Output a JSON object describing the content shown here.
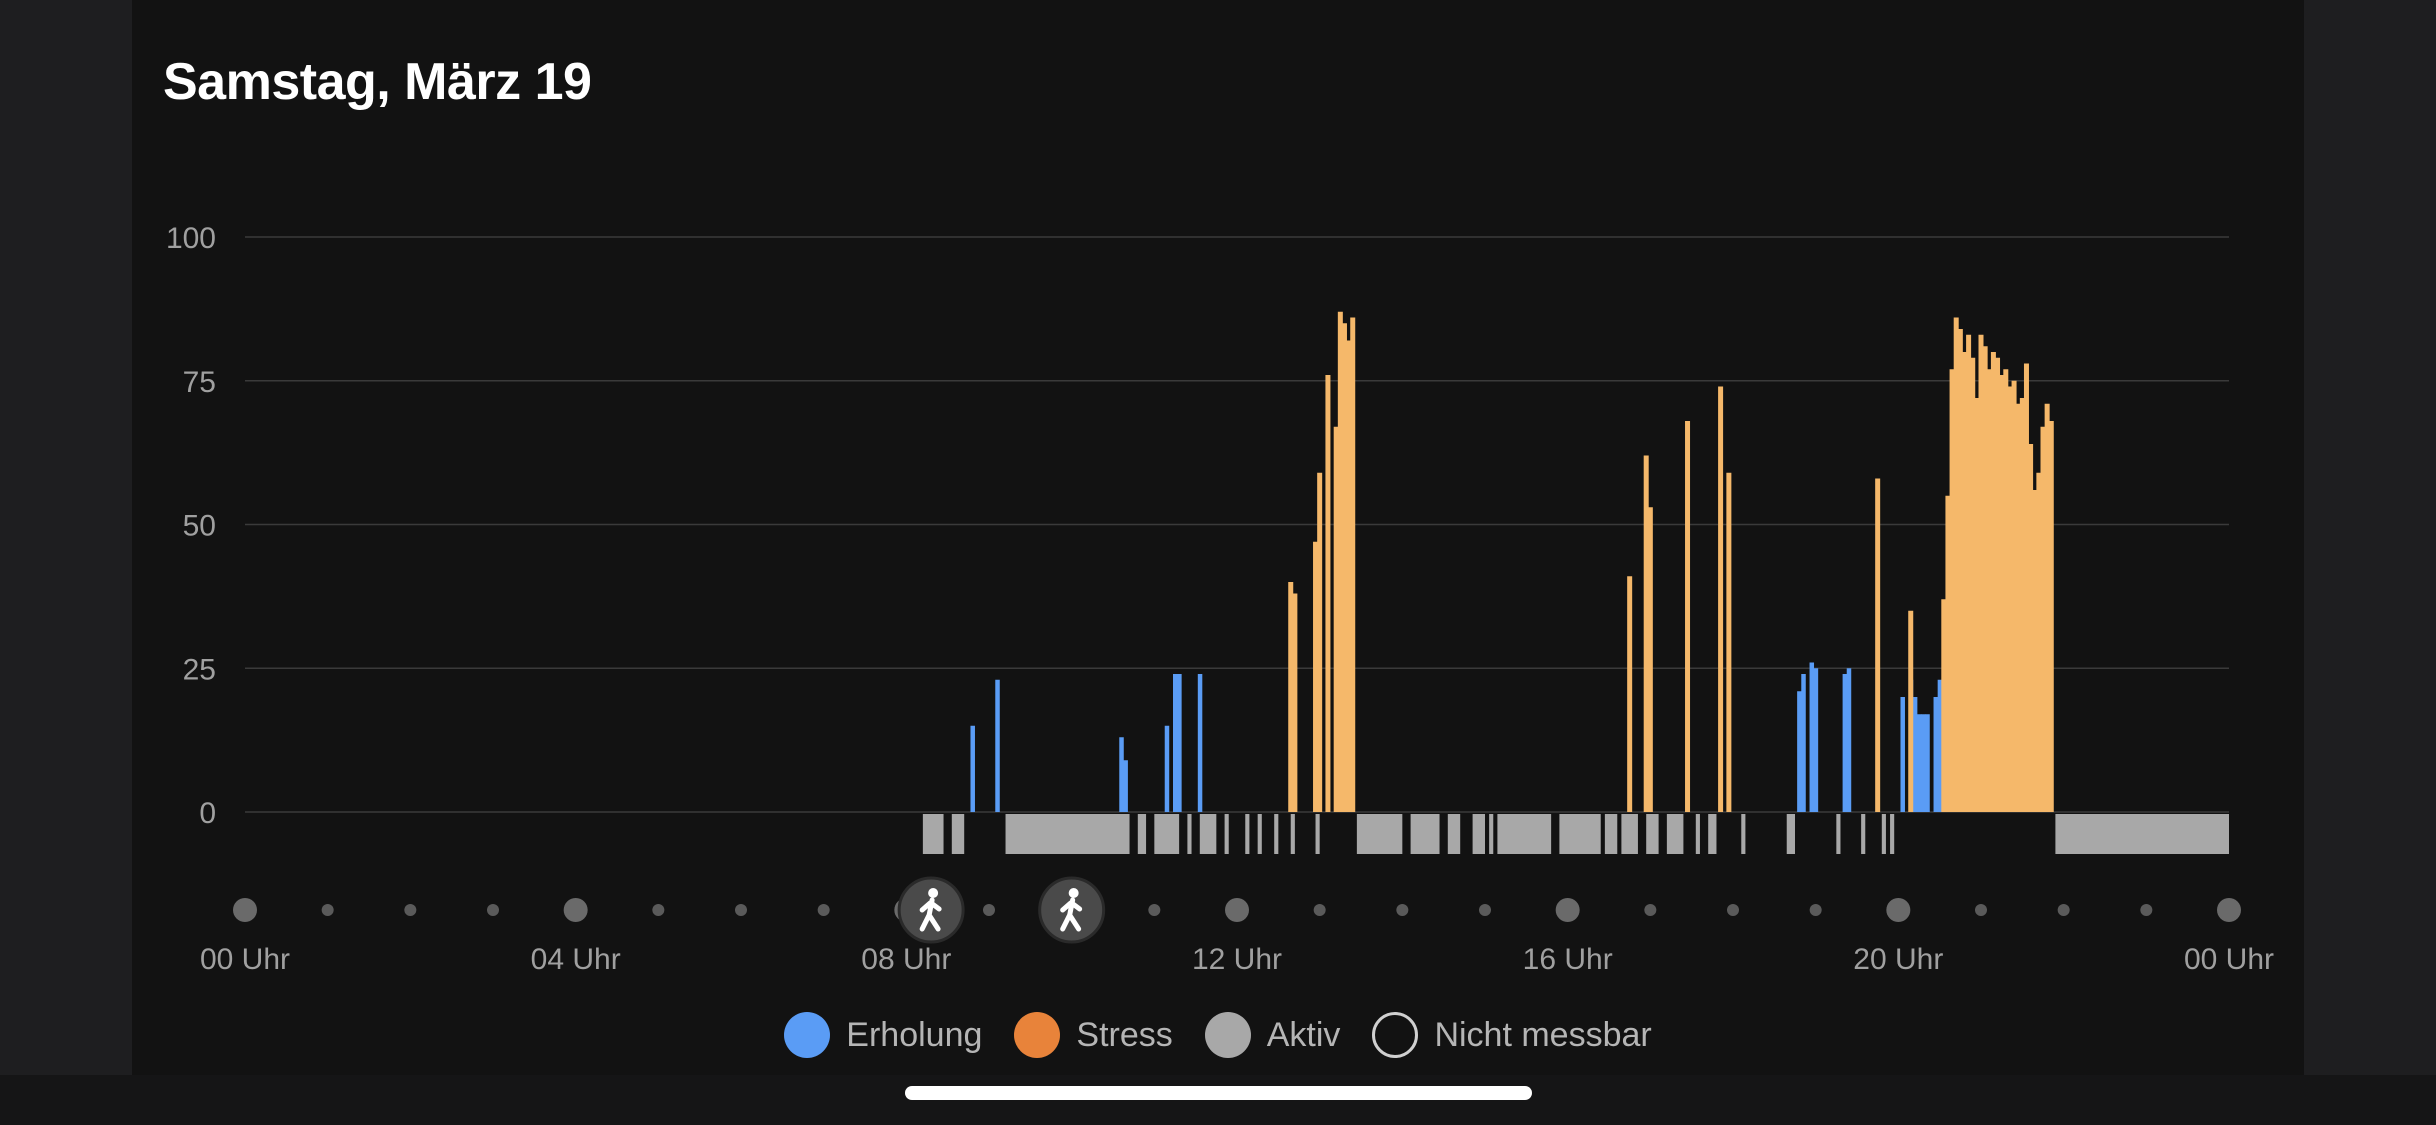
{
  "header": {
    "title": "Samstag, März 19"
  },
  "colors": {
    "recovery": "#5a9cf5",
    "stress": "#e8833a",
    "stress_light": "#f5b86a",
    "active": "#a8a8a8",
    "grid": "#3a3a3a",
    "axis_text": "#a0a0a0"
  },
  "chart_data": {
    "type": "bar",
    "ylim": [
      0,
      100
    ],
    "yticks": [
      "0",
      "25",
      "50",
      "75",
      "100"
    ],
    "xlim_hours": [
      0,
      24
    ],
    "xticks": [
      "00 Uhr",
      "04 Uhr",
      "08 Uhr",
      "12 Uhr",
      "16 Uhr",
      "20 Uhr",
      "00 Uhr"
    ],
    "recovery": [
      [
        8.8,
        15
      ],
      [
        9.1,
        23
      ],
      [
        10.6,
        13
      ],
      [
        10.65,
        9
      ],
      [
        11.15,
        15
      ],
      [
        11.25,
        24
      ],
      [
        11.3,
        24
      ],
      [
        11.55,
        24
      ],
      [
        18.8,
        21
      ],
      [
        18.85,
        24
      ],
      [
        18.95,
        26
      ],
      [
        19.0,
        25
      ],
      [
        19.35,
        24
      ],
      [
        19.4,
        25
      ],
      [
        19.05,
        0
      ],
      [
        20.05,
        20
      ],
      [
        20.15,
        23
      ],
      [
        20.2,
        20
      ],
      [
        20.25,
        17
      ],
      [
        20.3,
        17
      ],
      [
        20.35,
        17
      ],
      [
        20.45,
        20
      ],
      [
        20.5,
        23
      ]
    ],
    "stress": [
      [
        12.65,
        40
      ],
      [
        12.7,
        38
      ],
      [
        12.95,
        47
      ],
      [
        13.0,
        59
      ],
      [
        13.1,
        76
      ],
      [
        13.2,
        67
      ],
      [
        13.25,
        87
      ],
      [
        13.3,
        85
      ],
      [
        13.35,
        82
      ],
      [
        13.4,
        86
      ],
      [
        16.75,
        41
      ],
      [
        16.95,
        62
      ],
      [
        17.0,
        53
      ],
      [
        17.45,
        68
      ],
      [
        17.85,
        74
      ],
      [
        17.95,
        59
      ],
      [
        19.75,
        58
      ],
      [
        20.15,
        35
      ],
      [
        20.55,
        37
      ],
      [
        20.6,
        55
      ],
      [
        20.65,
        77
      ],
      [
        20.7,
        86
      ],
      [
        20.75,
        84
      ],
      [
        20.8,
        80
      ],
      [
        20.85,
        83
      ],
      [
        20.9,
        79
      ],
      [
        20.95,
        72
      ],
      [
        21.0,
        83
      ],
      [
        21.05,
        81
      ],
      [
        21.1,
        77
      ],
      [
        21.15,
        80
      ],
      [
        21.2,
        79
      ],
      [
        21.25,
        76
      ],
      [
        21.3,
        77
      ],
      [
        21.35,
        74
      ],
      [
        21.4,
        75
      ],
      [
        21.45,
        71
      ],
      [
        21.5,
        72
      ],
      [
        21.55,
        78
      ],
      [
        21.6,
        64
      ],
      [
        21.65,
        56
      ],
      [
        21.7,
        59
      ],
      [
        21.75,
        67
      ],
      [
        21.8,
        71
      ],
      [
        21.85,
        68
      ]
    ],
    "active": [
      [
        8.2,
        8.45
      ],
      [
        8.55,
        8.7
      ],
      [
        9.2,
        10.7
      ],
      [
        10.8,
        10.9
      ],
      [
        11.0,
        11.3
      ],
      [
        11.4,
        11.45
      ],
      [
        11.55,
        11.75
      ],
      [
        11.85,
        11.9
      ],
      [
        12.1,
        12.15
      ],
      [
        12.25,
        12.3
      ],
      [
        12.45,
        12.5
      ],
      [
        12.65,
        12.7
      ],
      [
        12.95,
        13.0
      ],
      [
        13.45,
        14.0
      ],
      [
        14.1,
        14.45
      ],
      [
        14.55,
        14.7
      ],
      [
        14.85,
        15.0
      ],
      [
        15.05,
        15.1
      ],
      [
        15.15,
        15.8
      ],
      [
        15.9,
        16.4
      ],
      [
        16.45,
        16.6
      ],
      [
        16.65,
        16.85
      ],
      [
        16.95,
        17.1
      ],
      [
        17.2,
        17.4
      ],
      [
        17.55,
        17.6
      ],
      [
        17.7,
        17.8
      ],
      [
        18.1,
        18.15
      ],
      [
        18.65,
        18.75
      ],
      [
        19.25,
        19.3
      ],
      [
        19.55,
        19.6
      ],
      [
        19.8,
        19.85
      ],
      [
        19.9,
        19.95
      ],
      [
        21.9,
        24.0
      ]
    ],
    "activity_markers": [
      {
        "hour": 8.3,
        "icon": "walking-icon"
      },
      {
        "hour": 10.0,
        "icon": "walking-icon"
      }
    ]
  },
  "legend": {
    "items": [
      {
        "label": "Erholung",
        "color": "#5a9cf5",
        "style": "filled"
      },
      {
        "label": "Stress",
        "color": "#e8833a",
        "style": "filled"
      },
      {
        "label": "Aktiv",
        "color": "#a8a8a8",
        "style": "filled"
      },
      {
        "label": "Nicht messbar",
        "color": "#d0d0d0",
        "style": "outline"
      }
    ]
  }
}
